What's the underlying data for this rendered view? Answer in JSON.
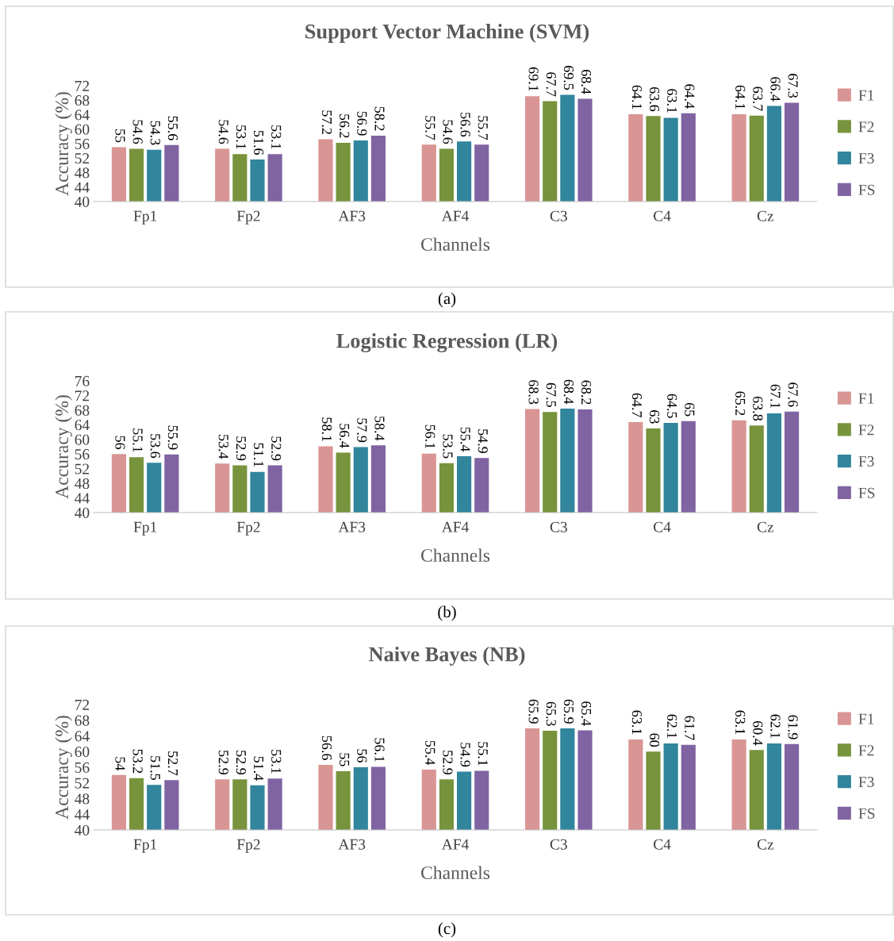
{
  "chart_data": [
    {
      "type": "bar",
      "title": "Support Vector Machine (SVM)",
      "xlabel": "Channels",
      "ylabel": "Accuracy (%)",
      "categories": [
        "Fp1",
        "Fp2",
        "AF3",
        "AF4",
        "C3",
        "C4",
        "Cz"
      ],
      "ylim": [
        40,
        72
      ],
      "yticks": [
        40,
        44,
        48,
        52,
        56,
        60,
        64,
        68,
        72
      ],
      "data_labels": true,
      "legend": "right",
      "grid": false,
      "annotations": [
        "(a)"
      ],
      "series": [
        {
          "name": "F1",
          "color": "#d99594",
          "values": [
            55,
            54.6,
            57.2,
            55.7,
            69.1,
            64.1,
            64.1
          ]
        },
        {
          "name": "F2",
          "color": "#77933c",
          "values": [
            54.6,
            53.1,
            56.2,
            54.6,
            67.7,
            63.6,
            63.7
          ]
        },
        {
          "name": "F3",
          "color": "#31859c",
          "values": [
            54.3,
            51.6,
            56.9,
            56.6,
            69.5,
            63.1,
            66.4
          ]
        },
        {
          "name": "FS",
          "color": "#8064a2",
          "values": [
            55.6,
            53.1,
            58.2,
            55.7,
            68.4,
            64.4,
            67.3
          ]
        }
      ]
    },
    {
      "type": "bar",
      "title": "Logistic Regression (LR)",
      "xlabel": "Channels",
      "ylabel": "Accuracy (%)",
      "categories": [
        "Fp1",
        "Fp2",
        "AF3",
        "AF4",
        "C3",
        "C4",
        "Cz"
      ],
      "ylim": [
        40,
        76
      ],
      "yticks": [
        40,
        44,
        48,
        52,
        56,
        60,
        64,
        68,
        72,
        76
      ],
      "data_labels": true,
      "legend": "right",
      "grid": false,
      "annotations": [
        "(b)"
      ],
      "series": [
        {
          "name": "F1",
          "color": "#d99594",
          "values": [
            56,
            53.4,
            58.1,
            56.1,
            68.3,
            64.7,
            65.2
          ]
        },
        {
          "name": "F2",
          "color": "#77933c",
          "values": [
            55.1,
            52.9,
            56.4,
            53.5,
            67.5,
            63,
            63.8
          ]
        },
        {
          "name": "F3",
          "color": "#31859c",
          "values": [
            53.6,
            51.1,
            57.9,
            55.4,
            68.4,
            64.5,
            67.1
          ]
        },
        {
          "name": "FS",
          "color": "#8064a2",
          "values": [
            55.9,
            52.9,
            58.4,
            54.9,
            68.2,
            65,
            67.6
          ]
        }
      ]
    },
    {
      "type": "bar",
      "title": "Naive Bayes (NB)",
      "xlabel": "Channels",
      "ylabel": "Accuracy (%)",
      "categories": [
        "Fp1",
        "Fp2",
        "AF3",
        "AF4",
        "C3",
        "C4",
        "Cz"
      ],
      "ylim": [
        40,
        72
      ],
      "yticks": [
        40,
        44,
        48,
        52,
        56,
        60,
        64,
        68,
        72
      ],
      "data_labels": true,
      "legend": "right",
      "grid": false,
      "annotations": [
        "(c)"
      ],
      "series": [
        {
          "name": "F1",
          "color": "#d99594",
          "values": [
            54,
            52.9,
            56.6,
            55.4,
            65.9,
            63.1,
            63.1
          ]
        },
        {
          "name": "F2",
          "color": "#77933c",
          "values": [
            53.2,
            52.9,
            55,
            52.9,
            65.3,
            60,
            60.4
          ]
        },
        {
          "name": "F3",
          "color": "#31859c",
          "values": [
            51.5,
            51.4,
            56,
            54.9,
            65.9,
            62.1,
            62.1
          ]
        },
        {
          "name": "FS",
          "color": "#8064a2",
          "values": [
            52.7,
            53.1,
            56.1,
            55.1,
            65.4,
            61.7,
            61.9
          ]
        }
      ]
    }
  ]
}
